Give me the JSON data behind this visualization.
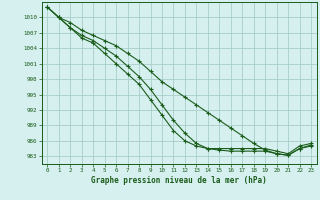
{
  "title": "Graphe pression niveau de la mer (hPa)",
  "background_color": "#d6f0ef",
  "grid_color": "#a8cfc9",
  "line_color": "#1a5c1a",
  "xlim": [
    -0.5,
    23.5
  ],
  "ylim": [
    981.5,
    1013
  ],
  "yticks": [
    983,
    986,
    989,
    992,
    995,
    998,
    1001,
    1004,
    1007,
    1010
  ],
  "xticks": [
    0,
    1,
    2,
    3,
    4,
    5,
    6,
    7,
    8,
    9,
    10,
    11,
    12,
    13,
    14,
    15,
    16,
    17,
    18,
    19,
    20,
    21,
    22,
    23
  ],
  "curve1_x": [
    0,
    1,
    2,
    3,
    4,
    5,
    6,
    7,
    8,
    9,
    10,
    11,
    12,
    13,
    14,
    15,
    16,
    17,
    18,
    19,
    20,
    21,
    22,
    23
  ],
  "curve1_y": [
    1012,
    1010,
    1008,
    1006,
    1005,
    1003,
    1001,
    999,
    997,
    994,
    991,
    988,
    986,
    985,
    984.5,
    984.5,
    984.5,
    984.5,
    984.5,
    984.5,
    984,
    983.5,
    985,
    985.5
  ],
  "curve2_x": [
    0,
    1,
    2,
    3,
    4,
    5,
    6,
    7,
    8,
    9,
    10,
    11,
    12,
    13,
    14,
    15,
    16,
    17,
    18,
    19,
    20,
    21,
    22,
    23
  ],
  "curve2_y": [
    1012,
    1010,
    1008,
    1006.5,
    1005.5,
    1004,
    1002.5,
    1000.5,
    998.5,
    996,
    993,
    990,
    987.5,
    985.5,
    984.5,
    984.2,
    984,
    984,
    984,
    984,
    983.5,
    983.2,
    984.5,
    985.2
  ],
  "curve3_x": [
    0,
    1,
    2,
    3,
    4,
    5,
    6,
    7,
    8,
    9,
    10,
    11,
    12,
    13,
    14,
    15,
    16,
    17,
    18,
    19,
    20,
    21,
    22,
    23
  ],
  "curve3_y": [
    1012,
    1010,
    1009,
    1007.5,
    1006.5,
    1005.5,
    1004.5,
    1003,
    1001.5,
    999.5,
    997.5,
    996,
    994.5,
    993,
    991.5,
    990,
    988.5,
    987,
    985.5,
    984.2,
    983.5,
    983.2,
    984.5,
    985.0
  ]
}
